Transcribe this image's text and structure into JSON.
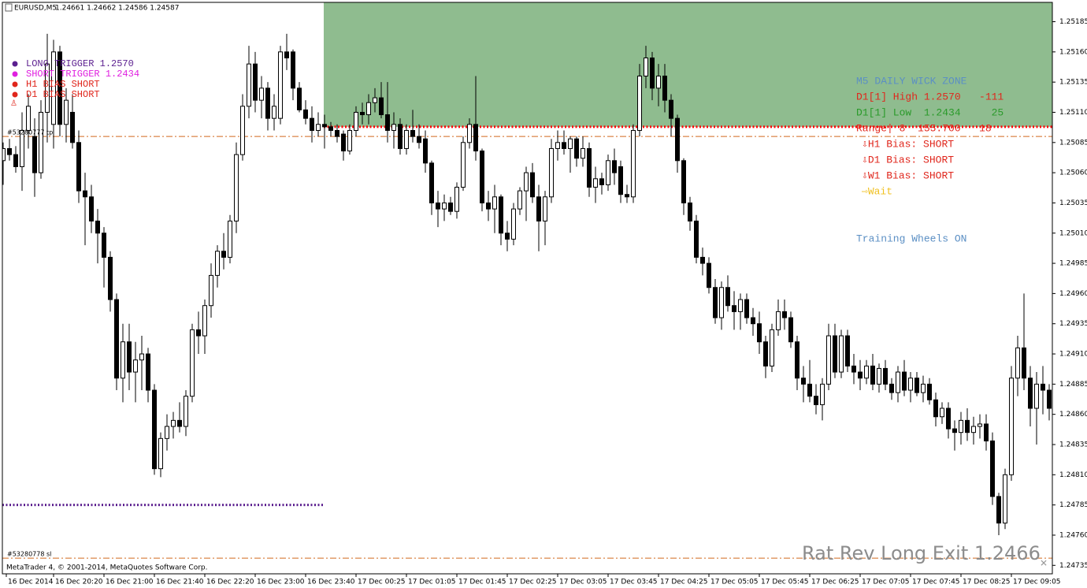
{
  "header": {
    "symbol": "EURUSD,M5",
    "prices": "1.24661 1.24662 1.24586 1.24587"
  },
  "footer": "MetaTrader 4, © 2001-2014, MetaQuotes Software Corp.",
  "legend": [
    {
      "label": "LONG TRIGGER  1.2570",
      "color": "#5b1f8f"
    },
    {
      "label": "SHORT TRIGGER 1.2434",
      "color": "#e020e0"
    },
    {
      "label": "H1 BIAS SHORT",
      "color": "#e0261c"
    },
    {
      "label": "D1 BIAS SHORT",
      "color": "#e0261c"
    }
  ],
  "panel": [
    {
      "text": "M5 DAILY WICK ZONE",
      "color": "#5b8fc4"
    },
    {
      "text": "D1[1] High 1.2570   -111",
      "color": "#e0261c"
    },
    {
      "text": "D1[1] Low  1.2434     25",
      "color": "#2a9a2a"
    },
    {
      "text": "Range| 8  155.700   18",
      "color": "#e0261c"
    },
    {
      "text": "⇩H1 Bias: SHORT",
      "color": "#e0261c"
    },
    {
      "text": "⇩D1 Bias: SHORT",
      "color": "#e0261c"
    },
    {
      "text": "⇩W1 Bias: SHORT",
      "color": "#e0261c"
    },
    {
      "text": "⇨Wait",
      "color": "#f0c020"
    },
    {
      "text": "Training Wheels ON",
      "color": "#5b8fc4"
    }
  ],
  "exit_label": "Rat Rev Long Exit  1.2466",
  "chart_data": {
    "type": "candlestick",
    "ylim": [
      1.24728,
      1.25201
    ],
    "yticks": [
      1.25185,
      {
        "value": 1.2516,
        "label": "1.25160"
      },
      1.25135,
      {
        "value": 1.2511,
        "label": "1.25110"
      },
      1.25085,
      {
        "value": 1.2506,
        "label": "1.25060"
      },
      1.25035,
      {
        "value": 1.2501,
        "label": "1.25010"
      },
      1.24985,
      {
        "value": 1.2496,
        "label": "1.24960"
      },
      1.24935,
      {
        "value": 1.2491,
        "label": "1.24910"
      },
      1.24885,
      {
        "value": 1.2486,
        "label": "1.24860"
      },
      1.24835,
      {
        "value": 1.2481,
        "label": "1.24810"
      },
      1.24785,
      {
        "value": 1.2476,
        "label": "1.24760"
      },
      1.24735
    ],
    "xtick_labels": [
      "16 Dec 2014",
      "16 Dec 20:20",
      "16 Dec 21:00",
      "16 Dec 21:40",
      "16 Dec 22:20",
      "16 Dec 23:00",
      "16 Dec 23:40",
      "17 Dec 00:25",
      "17 Dec 01:05",
      "17 Dec 01:45",
      "17 Dec 02:25",
      "17 Dec 03:05",
      "17 Dec 03:45",
      "17 Dec 04:25",
      "17 Dec 05:05",
      "17 Dec 05:45",
      "17 Dec 06:25",
      "17 Dec 07:05",
      "17 Dec 07:45",
      "17 Dec 08:25",
      "17 Dec 09:05"
    ],
    "up_color": "#ffffff",
    "down_color": "#000000",
    "zone": {
      "low": 1.25098,
      "color": "#8fbc8f",
      "edge_color": "#ff0000"
    },
    "levels": [
      {
        "label": "#53280777 tp",
        "value": 1.2509,
        "color": "#d2691e"
      },
      {
        "label": "#53280778 sl",
        "value": 1.24741,
        "color": "#d2691e"
      },
      {
        "value": 1.24785,
        "color": "#5b1f8f"
      }
    ],
    "ohlc": [
      [
        1.2507,
        1.25085,
        1.2505,
        1.2508
      ],
      [
        1.2508,
        1.25088,
        1.2507,
        1.25075
      ],
      [
        1.25075,
        1.25082,
        1.2506,
        1.25065
      ],
      [
        1.25065,
        1.2511,
        1.25045,
        1.25095
      ],
      [
        1.25095,
        1.25125,
        1.2508,
        1.25115
      ],
      [
        1.2509,
        1.25105,
        1.2504,
        1.2506
      ],
      [
        1.2506,
        1.2512,
        1.25055,
        1.2511
      ],
      [
        1.2511,
        1.25175,
        1.25085,
        1.2515
      ],
      [
        1.251,
        1.2517,
        1.2508,
        1.2516
      ],
      [
        1.2516,
        1.25165,
        1.2509,
        1.251
      ],
      [
        1.251,
        1.2513,
        1.25085,
        1.2512
      ],
      [
        1.2511,
        1.25125,
        1.2508,
        1.25085
      ],
      [
        1.25085,
        1.25095,
        1.25035,
        1.25045
      ],
      [
        1.25045,
        1.2506,
        1.25,
        1.2504
      ],
      [
        1.2504,
        1.2505,
        1.2501,
        1.2502
      ],
      [
        1.2502,
        1.2503,
        1.24985,
        1.2501
      ],
      [
        1.2501,
        1.25015,
        1.24965,
        1.2499
      ],
      [
        1.2499,
        1.24995,
        1.24945,
        1.24955
      ],
      [
        1.24955,
        1.2496,
        1.2488,
        1.2489
      ],
      [
        1.2489,
        1.24935,
        1.2487,
        1.2492
      ],
      [
        1.2492,
        1.24935,
        1.2488,
        1.24895
      ],
      [
        1.24895,
        1.2492,
        1.2487,
        1.24905
      ],
      [
        1.24905,
        1.24925,
        1.2488,
        1.2491
      ],
      [
        1.2491,
        1.24915,
        1.2487,
        1.2488
      ],
      [
        1.2488,
        1.24885,
        1.2481,
        1.24815
      ],
      [
        1.24815,
        1.24845,
        1.24808,
        1.2484
      ],
      [
        1.2484,
        1.2486,
        1.2483,
        1.2485
      ],
      [
        1.2485,
        1.24862,
        1.2484,
        1.24855
      ],
      [
        1.24855,
        1.2487,
        1.24845,
        1.2485
      ],
      [
        1.2485,
        1.2488,
        1.24842,
        1.24875
      ],
      [
        1.24875,
        1.24935,
        1.2487,
        1.2493
      ],
      [
        1.2493,
        1.24945,
        1.2491,
        1.24925
      ],
      [
        1.24925,
        1.24955,
        1.2491,
        1.2495
      ],
      [
        1.2495,
        1.24985,
        1.2494,
        1.24975
      ],
      [
        1.24975,
        1.25,
        1.24965,
        1.24995
      ],
      [
        1.24995,
        1.2501,
        1.2498,
        1.2499
      ],
      [
        1.2499,
        1.25025,
        1.24985,
        1.2502
      ],
      [
        1.2502,
        1.25085,
        1.2501,
        1.25075
      ],
      [
        1.25075,
        1.25125,
        1.2507,
        1.25115
      ],
      [
        1.25115,
        1.25165,
        1.25105,
        1.2515
      ],
      [
        1.2515,
        1.2516,
        1.2511,
        1.2512
      ],
      [
        1.2512,
        1.2514,
        1.25105,
        1.2513
      ],
      [
        1.2513,
        1.25135,
        1.25095,
        1.25105
      ],
      [
        1.25105,
        1.25125,
        1.25095,
        1.25115
      ],
      [
        1.25105,
        1.25165,
        1.251,
        1.2516
      ],
      [
        1.2516,
        1.25175,
        1.25145,
        1.25155
      ],
      [
        1.2516,
        1.25162,
        1.2512,
        1.2513
      ],
      [
        1.2513,
        1.25135,
        1.2511,
        1.25112
      ],
      [
        1.25112,
        1.2512,
        1.251,
        1.25105
      ],
      [
        1.25105,
        1.25115,
        1.25085,
        1.25095
      ],
      [
        1.25095,
        1.2511,
        1.2509,
        1.251
      ],
      [
        1.251,
        1.25108,
        1.2508,
        1.25098
      ],
      [
        1.25098,
        1.25102,
        1.2509,
        1.25095
      ],
      [
        1.25095,
        1.251,
        1.25085,
        1.2509
      ],
      [
        1.25092,
        1.25095,
        1.2507,
        1.25078
      ],
      [
        1.25078,
        1.251,
        1.25075,
        1.25095
      ],
      [
        1.25095,
        1.25115,
        1.2509,
        1.2511
      ],
      [
        1.2511,
        1.25118,
        1.251,
        1.25108
      ],
      [
        1.25108,
        1.25125,
        1.251,
        1.25118
      ],
      [
        1.25118,
        1.2513,
        1.2511,
        1.25122
      ],
      [
        1.25122,
        1.25135,
        1.25105,
        1.25108
      ],
      [
        1.25108,
        1.25135,
        1.25085,
        1.25095
      ],
      [
        1.25095,
        1.2511,
        1.2508,
        1.251
      ],
      [
        1.251,
        1.25105,
        1.25075,
        1.2508
      ],
      [
        1.2508,
        1.251,
        1.25075,
        1.25095
      ],
      [
        1.25095,
        1.25112,
        1.25085,
        1.2509
      ],
      [
        1.2509,
        1.251,
        1.2508,
        1.25085
      ],
      [
        1.25088,
        1.25095,
        1.2506,
        1.25068
      ],
      [
        1.25068,
        1.2507,
        1.25025,
        1.25035
      ],
      [
        1.25035,
        1.25045,
        1.25015,
        1.2503
      ],
      [
        1.2503,
        1.25042,
        1.2502,
        1.25035
      ],
      [
        1.25035,
        1.2504,
        1.25025,
        1.25028
      ],
      [
        1.25028,
        1.25052,
        1.25022,
        1.25048
      ],
      [
        1.25048,
        1.2509,
        1.25045,
        1.25085
      ],
      [
        1.25085,
        1.25105,
        1.2508,
        1.251
      ],
      [
        1.251,
        1.2514,
        1.2507,
        1.25078
      ],
      [
        1.25078,
        1.2508,
        1.25028,
        1.25035
      ],
      [
        1.25035,
        1.25045,
        1.2502,
        1.2503
      ],
      [
        1.2503,
        1.2505,
        1.2501,
        1.2504
      ],
      [
        1.2504,
        1.25042,
        1.25,
        1.2501
      ],
      [
        1.2501,
        1.2502,
        1.24995,
        1.25005
      ],
      [
        1.25005,
        1.25035,
        1.25,
        1.2503
      ],
      [
        1.2503,
        1.25048,
        1.25025,
        1.25045
      ],
      [
        1.25045,
        1.25065,
        1.2502,
        1.2506
      ],
      [
        1.2506,
        1.25068,
        1.25035,
        1.2504
      ],
      [
        1.2504,
        1.2505,
        1.24995,
        1.2502
      ],
      [
        1.2502,
        1.25045,
        1.25,
        1.2504
      ],
      [
        1.2504,
        1.25088,
        1.25035,
        1.2508
      ],
      [
        1.2508,
        1.25095,
        1.2507,
        1.25085
      ],
      [
        1.25085,
        1.25095,
        1.25075,
        1.2508
      ],
      [
        1.2508,
        1.2509,
        1.2506,
        1.25088
      ],
      [
        1.25088,
        1.2509,
        1.25065,
        1.25072
      ],
      [
        1.25072,
        1.2509,
        1.25065,
        1.2508
      ],
      [
        1.2508,
        1.25085,
        1.2504,
        1.25048
      ],
      [
        1.25048,
        1.25065,
        1.25035,
        1.25055
      ],
      [
        1.25055,
        1.2506,
        1.25042,
        1.2505
      ],
      [
        1.2505,
        1.25075,
        1.25045,
        1.2507
      ],
      [
        1.2507,
        1.2508,
        1.2505,
        1.2506
      ],
      [
        1.25065,
        1.2507,
        1.25035,
        1.25042
      ],
      [
        1.25042,
        1.2505,
        1.25035,
        1.2504
      ],
      [
        1.2504,
        1.251,
        1.25035,
        1.25095
      ],
      [
        1.25095,
        1.2515,
        1.2509,
        1.2514
      ],
      [
        1.2514,
        1.25165,
        1.2513,
        1.25155
      ],
      [
        1.25155,
        1.2516,
        1.2512,
        1.2513
      ],
      [
        1.2513,
        1.2515,
        1.25115,
        1.2514
      ],
      [
        1.2514,
        1.2515,
        1.2511,
        1.2512
      ],
      [
        1.2512,
        1.25125,
        1.2509,
        1.25105
      ],
      [
        1.25105,
        1.25108,
        1.2506,
        1.2507
      ],
      [
        1.2507,
        1.25072,
        1.25025,
        1.25035
      ],
      [
        1.25035,
        1.2504,
        1.25012,
        1.2502
      ],
      [
        1.2502,
        1.25025,
        1.24985,
        1.2499
      ],
      [
        1.2499,
        1.24998,
        1.24975,
        1.24985
      ],
      [
        1.24985,
        1.2499,
        1.2496,
        1.24965
      ],
      [
        1.24965,
        1.24972,
        1.24935,
        1.2494
      ],
      [
        1.2494,
        1.2497,
        1.2493,
        1.24965
      ],
      [
        1.24965,
        1.24975,
        1.24945,
        1.2495
      ],
      [
        1.2495,
        1.24962,
        1.2493,
        1.24945
      ],
      [
        1.24945,
        1.2496,
        1.2493,
        1.24955
      ],
      [
        1.24955,
        1.2496,
        1.24935,
        1.2494
      ],
      [
        1.2494,
        1.24948,
        1.24925,
        1.24935
      ],
      [
        1.24935,
        1.24945,
        1.2491,
        1.2492
      ],
      [
        1.2492,
        1.24925,
        1.2489,
        1.249
      ],
      [
        1.249,
        1.24935,
        1.24895,
        1.2493
      ],
      [
        1.2493,
        1.24955,
        1.24925,
        1.24945
      ],
      [
        1.24945,
        1.24955,
        1.2493,
        1.2494
      ],
      [
        1.2494,
        1.24945,
        1.24915,
        1.2492
      ],
      [
        1.2492,
        1.24925,
        1.2488,
        1.2489
      ],
      [
        1.2489,
        1.249,
        1.2487,
        1.24885
      ],
      [
        1.24885,
        1.24905,
        1.2487,
        1.24875
      ],
      [
        1.24875,
        1.24885,
        1.2486,
        1.24868
      ],
      [
        1.24868,
        1.2489,
        1.24855,
        1.24885
      ],
      [
        1.24885,
        1.24935,
        1.2488,
        1.24925
      ],
      [
        1.24925,
        1.24935,
        1.2489,
        1.24895
      ],
      [
        1.24895,
        1.2493,
        1.2489,
        1.24925
      ],
      [
        1.24925,
        1.2493,
        1.24895,
        1.249
      ],
      [
        1.249,
        1.2491,
        1.24885,
        1.24895
      ],
      [
        1.24895,
        1.24905,
        1.2488,
        1.2489
      ],
      [
        1.2489,
        1.24905,
        1.24885,
        1.249
      ],
      [
        1.249,
        1.2491,
        1.2488,
        1.24885
      ],
      [
        1.24885,
        1.24902,
        1.24878,
        1.24898
      ],
      [
        1.24898,
        1.24905,
        1.2488,
        1.24885
      ],
      [
        1.24885,
        1.2489,
        1.24872,
        1.24878
      ],
      [
        1.24878,
        1.249,
        1.2487,
        1.24895
      ],
      [
        1.24895,
        1.24905,
        1.24875,
        1.2488
      ],
      [
        1.2488,
        1.24895,
        1.2487,
        1.2489
      ],
      [
        1.2489,
        1.24895,
        1.24875,
        1.24878
      ],
      [
        1.24878,
        1.24892,
        1.2487,
        1.24885
      ],
      [
        1.24885,
        1.2489,
        1.24868,
        1.24872
      ],
      [
        1.24872,
        1.24878,
        1.2485,
        1.24858
      ],
      [
        1.24858,
        1.2487,
        1.24852,
        1.24865
      ],
      [
        1.24865,
        1.2487,
        1.2484,
        1.24848
      ],
      [
        1.24848,
        1.24855,
        1.2483,
        1.24845
      ],
      [
        1.24845,
        1.24862,
        1.24835,
        1.24855
      ],
      [
        1.24855,
        1.24865,
        1.24838,
        1.24845
      ],
      [
        1.24845,
        1.24858,
        1.24835,
        1.2485
      ],
      [
        1.2485,
        1.2486,
        1.2484,
        1.24852
      ],
      [
        1.24852,
        1.2486,
        1.2483,
        1.24838
      ],
      [
        1.24838,
        1.24845,
        1.24785,
        1.24792
      ],
      [
        1.24792,
        1.24795,
        1.2476,
        1.2477
      ],
      [
        1.2477,
        1.24815,
        1.24765,
        1.2481
      ],
      [
        1.2481,
        1.249,
        1.24805,
        1.2489
      ],
      [
        1.2489,
        1.24925,
        1.24875,
        1.24915
      ],
      [
        1.24915,
        1.2496,
        1.2488,
        1.2489
      ],
      [
        1.2489,
        1.249,
        1.2485,
        1.24865
      ],
      [
        1.24865,
        1.24895,
        1.24835,
        1.24885
      ],
      [
        1.24885,
        1.249,
        1.2486,
        1.2488
      ],
      [
        1.2488,
        1.24885,
        1.24855,
        1.24865
      ]
    ]
  }
}
